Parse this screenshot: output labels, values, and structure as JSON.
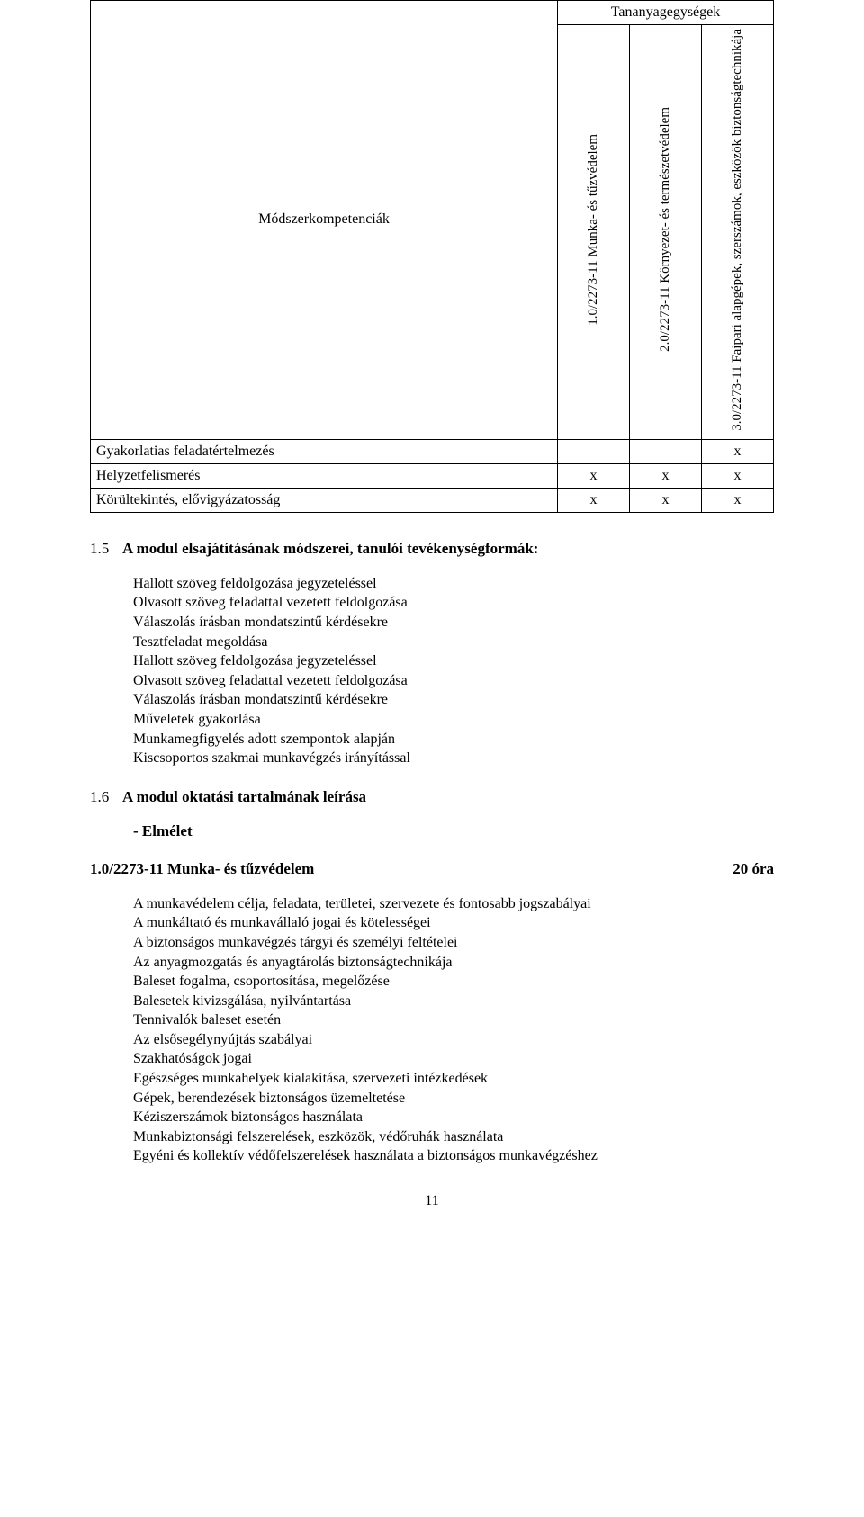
{
  "table": {
    "group_header": "Tananyagegységek",
    "left_header": "Módszerkompetenciák",
    "columns": [
      "1.0/2273-11 Munka- és tűzvédelem",
      "2.0/2273-11 Környezet- és természetvédelem",
      "3.0/2273-11 Faipari alapgépek, szerszámok, eszközök biztonságtechnikája"
    ],
    "rows": [
      {
        "label": "Gyakorlatias feladatértelmezés",
        "cells": [
          "",
          "",
          "x"
        ]
      },
      {
        "label": "Helyzetfelismerés",
        "cells": [
          "x",
          "x",
          "x"
        ]
      },
      {
        "label": "Körültekintés, elővigyázatosság",
        "cells": [
          "x",
          "x",
          "x"
        ]
      }
    ]
  },
  "section15": {
    "num": "1.5",
    "title": "A modul elsajátításának módszerei, tanulói tevékenységformák:",
    "items": [
      "Hallott szöveg feldolgozása jegyzeteléssel",
      "Olvasott szöveg feladattal vezetett feldolgozása",
      "Válaszolás írásban mondatszintű kérdésekre",
      "Tesztfeladat megoldása",
      "Hallott szöveg feldolgozása jegyzeteléssel",
      "Olvasott szöveg feladattal vezetett feldolgozása",
      "Válaszolás írásban mondatszintű kérdésekre",
      "Műveletek gyakorlása",
      "Munkamegfigyelés adott szempontok alapján",
      "Kiscsoportos szakmai munkavégzés irányítással"
    ]
  },
  "section16": {
    "num": "1.6",
    "title": "A modul oktatási tartalmának leírása",
    "sub": "- Elmélet"
  },
  "unit1": {
    "title": "1.0/2273-11 Munka- és tűzvédelem",
    "hours": "20 óra",
    "items": [
      "A munkavédelem célja, feladata, területei, szervezete és fontosabb jogszabályai",
      "A munkáltató és munkavállaló jogai és kötelességei",
      "A biztonságos munkavégzés tárgyi és személyi feltételei",
      "Az anyagmozgatás és anyagtárolás biztonságtechnikája",
      "Baleset fogalma, csoportosítása, megelőzése",
      "Balesetek kivizsgálása, nyilvántartása",
      "Tennivalók baleset esetén",
      "Az elsősegélynyújtás szabályai",
      "Szakhatóságok jogai",
      "Egészséges munkahelyek kialakítása, szervezeti intézkedések",
      "Gépek, berendezések biztonságos üzemeltetése",
      "Kéziszerszámok biztonságos használata",
      "Munkabiztonsági felszerelések, eszközök, védőruhák használata",
      "Egyéni és kollektív védőfelszerelések használata a biztonságos munkavégzéshez"
    ]
  },
  "page_number": "11"
}
